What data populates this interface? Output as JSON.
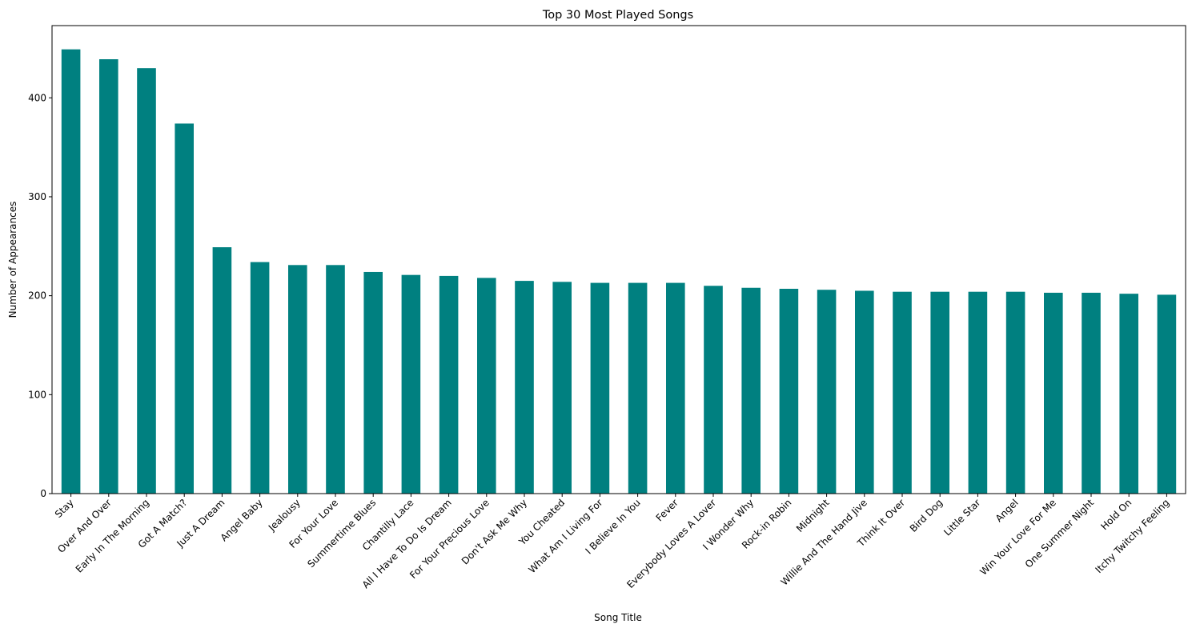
{
  "chart_data": {
    "type": "bar",
    "title": "Top 30 Most Played Songs",
    "xlabel": "Song Title",
    "ylabel": "Number of Appearances",
    "ylim": [
      0,
      473
    ],
    "yticks": [
      0,
      100,
      200,
      300,
      400
    ],
    "grid": false,
    "legend": "none",
    "bar_color": "#008080",
    "categories": [
      "Stay",
      "Over And Over",
      "Early In The Morning",
      "Got A Match?",
      "Just A Dream",
      "Angel Baby",
      "Jealousy",
      "For Your Love",
      "Summertime Blues",
      "Chantilly Lace",
      "All I Have To Do Is Dream",
      "For Your Precious Love",
      "Don't Ask Me Why",
      "You Cheated",
      "What Am I Living For",
      "I Believe In You",
      "Fever",
      "Everybody Loves A Lover",
      "I Wonder Why",
      "Rock-in Robin",
      "Midnight",
      "Willie And The Hand Jive",
      "Think It Over",
      "Bird Dog",
      "Little Star",
      "Angel",
      "Win Your Love For Me",
      "One Summer Night",
      "Hold On",
      "Itchy Twitchy Feeling"
    ],
    "values": [
      449,
      439,
      430,
      374,
      249,
      234,
      231,
      231,
      224,
      221,
      220,
      218,
      215,
      214,
      213,
      213,
      213,
      210,
      208,
      207,
      206,
      205,
      204,
      204,
      204,
      204,
      203,
      203,
      202,
      201
    ]
  }
}
